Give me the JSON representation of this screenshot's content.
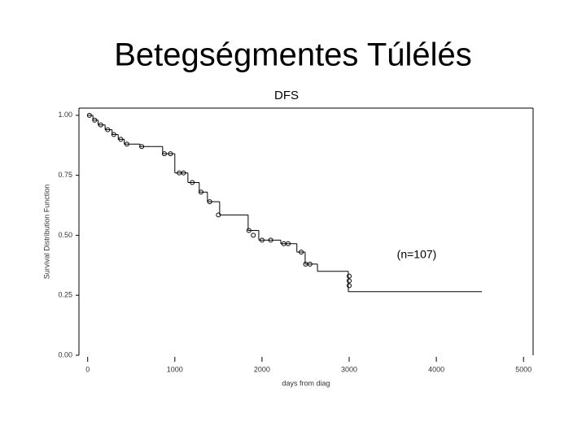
{
  "slide_title": "Betegségmentes Túlélés",
  "chart_data": {
    "type": "step",
    "title": "DFS",
    "x_label": "days from diag",
    "y_label": "Survival Distribution Function",
    "annotation": "(n=107)",
    "x": [
      0,
      60,
      120,
      200,
      280,
      350,
      420,
      600,
      860,
      1000,
      1150,
      1280,
      1374,
      1514,
      1841,
      1963,
      2215,
      2400,
      2495,
      2636,
      2990,
      4523
    ],
    "values": [
      1.0,
      0.98,
      0.96,
      0.94,
      0.92,
      0.9,
      0.88,
      0.87,
      0.84,
      0.76,
      0.72,
      0.68,
      0.64,
      0.585,
      0.52,
      0.48,
      0.465,
      0.43,
      0.38,
      0.35,
      0.265,
      0.265
    ],
    "censored": {
      "x": [
        20,
        80,
        150,
        230,
        300,
        380,
        450,
        620,
        880,
        950,
        1050,
        1100,
        1200,
        1300,
        1400,
        1500,
        1850,
        1900,
        2000,
        2100,
        2250,
        2300,
        2450,
        2500,
        2550,
        3000,
        3000,
        3000
      ],
      "values": [
        1.0,
        0.98,
        0.96,
        0.94,
        0.92,
        0.9,
        0.88,
        0.87,
        0.84,
        0.84,
        0.76,
        0.76,
        0.72,
        0.68,
        0.64,
        0.585,
        0.52,
        0.5,
        0.48,
        0.48,
        0.465,
        0.465,
        0.43,
        0.38,
        0.38,
        0.33,
        0.31,
        0.29
      ]
    },
    "color": "#000000",
    "xlim": [
      -100,
      5110
    ],
    "ylim": [
      0,
      1.03
    ],
    "xticks": [
      0,
      1000,
      2000,
      3000,
      4000,
      5000
    ],
    "yticks": [
      {
        "value": 0,
        "label": "0.00"
      },
      {
        "value": 0.25,
        "label": "0.25"
      },
      {
        "value": 0.5,
        "label": "0.50"
      },
      {
        "value": 0.75,
        "label": "0.75"
      },
      {
        "value": 1,
        "label": "1.00"
      }
    ]
  }
}
